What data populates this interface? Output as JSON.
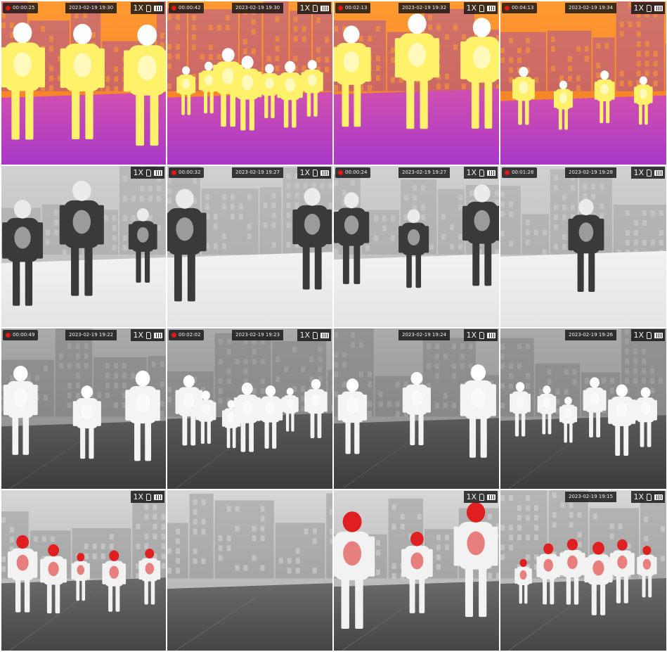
{
  "grid": {
    "rows": 4,
    "columns": 4
  },
  "palettes": {
    "ironbow": {
      "bg": "#f07820",
      "bgTop": "#ff9a32",
      "ground": "#a838c8",
      "groundEdge": "#d050b0",
      "person": "#fff26a",
      "personCore": "#ffffff",
      "accent": "#7a2fd0"
    },
    "whitehot": {
      "bg": "#b8b8b8",
      "bgTop": "#d0d0d0",
      "ground": "#e4e4e4",
      "groundEdge": "#f2f2f2",
      "person": "#3a3a3a",
      "personCore": "#ebebeb",
      "accent": "#909090"
    },
    "whitehot_dark": {
      "bg": "#8a8a8a",
      "bgTop": "#aaaaaa",
      "ground": "#3c3c3c",
      "groundEdge": "#5a5a5a",
      "person": "#f4f4f4",
      "personCore": "#ffffff",
      "accent": "#6a6a6a"
    },
    "redhot": {
      "bg": "#a8a8a8",
      "bgTop": "#d6d6d6",
      "ground": "#454545",
      "groundEdge": "#6a6a6a",
      "person": "#f2f2f2",
      "personCore": "#e02020",
      "accent": "#7a7a7a"
    }
  },
  "tiles": [
    {
      "palette": "ironbow",
      "elapsed": "00:00:25",
      "datetime": "2023-02-19 19:30",
      "zoom": "1X",
      "people": 3
    },
    {
      "palette": "ironbow",
      "elapsed": "00:00:42",
      "datetime": "2023-02-19 19:30",
      "zoom": "1X",
      "people": 7
    },
    {
      "palette": "ironbow",
      "elapsed": "00:02:13",
      "datetime": "2023-02-19 19:32",
      "zoom": "1X",
      "people": 3
    },
    {
      "palette": "ironbow",
      "elapsed": "00:04:13",
      "datetime": "2023-02-19 19:34",
      "zoom": "1X",
      "people": 4
    },
    {
      "palette": "whitehot",
      "elapsed": "",
      "datetime": "",
      "zoom": "1X",
      "people": 3
    },
    {
      "palette": "whitehot",
      "elapsed": "00:00:32",
      "datetime": "2023-02-19 19:27",
      "zoom": "1X",
      "people": 2
    },
    {
      "palette": "whitehot",
      "elapsed": "00:00:24",
      "datetime": "2023-02-19 19:27",
      "zoom": "1X",
      "people": 3
    },
    {
      "palette": "whitehot",
      "elapsed": "00:01:28",
      "datetime": "2023-02-19 19:28",
      "zoom": "1X",
      "people": 1
    },
    {
      "palette": "whitehot_dark",
      "elapsed": "00:00:49",
      "datetime": "2023-02-19 19:22",
      "zoom": "1X",
      "people": 3
    },
    {
      "palette": "whitehot_dark",
      "elapsed": "00:02:02",
      "datetime": "2023-02-19 19:23",
      "zoom": "1X",
      "people": 7
    },
    {
      "palette": "whitehot_dark",
      "elapsed": "",
      "datetime": "2023-02-19 19:24",
      "zoom": "1X",
      "people": 3
    },
    {
      "palette": "whitehot_dark",
      "elapsed": "",
      "datetime": "2023-02-19 19:26",
      "zoom": "1X",
      "people": 6
    },
    {
      "palette": "redhot",
      "elapsed": "",
      "datetime": "",
      "zoom": "1X",
      "people": 5
    },
    {
      "palette": "redhot",
      "elapsed": "",
      "datetime": "",
      "zoom": "",
      "people": 0
    },
    {
      "palette": "redhot",
      "elapsed": "",
      "datetime": "",
      "zoom": "1X",
      "people": 3
    },
    {
      "palette": "redhot",
      "elapsed": "",
      "datetime": "2023-02-19 19:15",
      "zoom": "1X",
      "people": 6
    }
  ]
}
